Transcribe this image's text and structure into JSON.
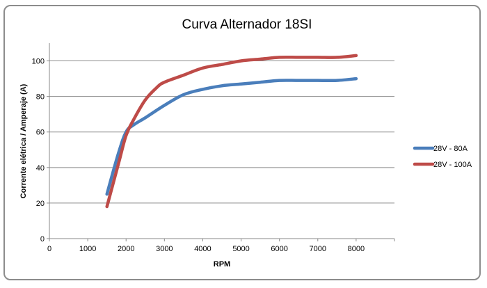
{
  "chart_data": {
    "type": "line",
    "title": "Curva Alternador 18SI",
    "xlabel": "RPM",
    "ylabel": "Corrente elétrica /  Amperaje (A)",
    "xlim": [
      0,
      9000
    ],
    "ylim": [
      0,
      110
    ],
    "xticks": [
      0,
      1000,
      2000,
      3000,
      4000,
      5000,
      6000,
      7000,
      8000
    ],
    "yticks": [
      0,
      20,
      40,
      60,
      80,
      100
    ],
    "grid": "horizontal",
    "legend_position": "right",
    "series": [
      {
        "name": "28V - 80A",
        "color": "#4a7ebb",
        "x": [
          1500,
          1800,
          2000,
          2200,
          2500,
          3000,
          3500,
          4000,
          4500,
          5000,
          5500,
          6000,
          6500,
          7000,
          7500,
          8000
        ],
        "y": [
          25,
          48,
          60,
          64,
          68,
          75,
          81,
          84,
          86,
          87,
          88,
          89,
          89,
          89,
          89,
          90
        ]
      },
      {
        "name": "28V - 100A",
        "color": "#be4b48",
        "x": [
          1500,
          1800,
          2000,
          2200,
          2500,
          2800,
          3000,
          3500,
          4000,
          4500,
          5000,
          5500,
          6000,
          6500,
          7000,
          7500,
          8000
        ],
        "y": [
          18,
          42,
          58,
          67,
          78,
          85,
          88,
          92,
          96,
          98,
          100,
          101,
          102,
          102,
          102,
          102,
          103
        ]
      }
    ]
  }
}
